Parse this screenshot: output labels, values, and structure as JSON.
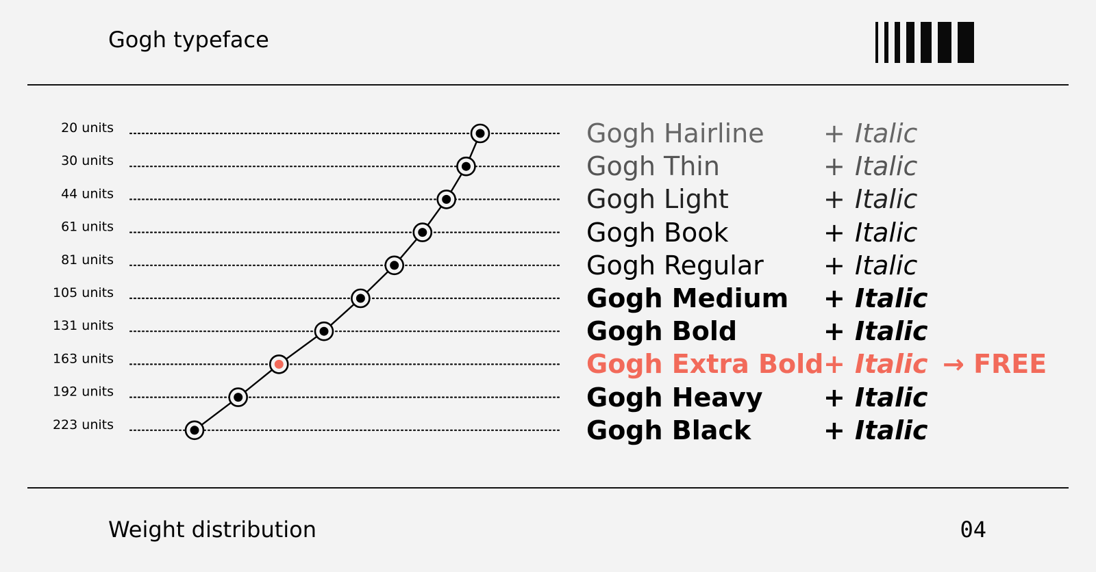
{
  "header": {
    "title": "Gogh typeface"
  },
  "footer": {
    "title": "Weight distribution",
    "page_number": "04"
  },
  "colors": {
    "accent": "#f26a5a",
    "ink": "#000000",
    "background": "#f3f3f3"
  },
  "chart_data": {
    "type": "line",
    "categories": [
      "20 units",
      "30 units",
      "44 units",
      "61 units",
      "81 units",
      "105 units",
      "131 units",
      "163 units",
      "192 units",
      "223 units"
    ],
    "values": [
      20,
      30,
      44,
      61,
      81,
      105,
      131,
      163,
      192,
      223
    ],
    "highlight_index": 7,
    "xlim": [
      20,
      223
    ]
  },
  "styles": [
    {
      "name": "Gogh Hairline",
      "plus": "+",
      "italic": "Italic",
      "weight": 100
    },
    {
      "name": "Gogh Thin",
      "plus": "+",
      "italic": "Italic",
      "weight": 200
    },
    {
      "name": "Gogh Light",
      "plus": "+",
      "italic": "Italic",
      "weight": 300
    },
    {
      "name": "Gogh Book",
      "plus": "+",
      "italic": "Italic",
      "weight": 350
    },
    {
      "name": "Gogh Regular",
      "plus": "+",
      "italic": "Italic",
      "weight": 400
    },
    {
      "name": "Gogh Medium",
      "plus": "+",
      "italic": "Italic",
      "weight": 500
    },
    {
      "name": "Gogh Bold",
      "plus": "+",
      "italic": "Italic",
      "weight": 700
    },
    {
      "name": "Gogh Extra Bold",
      "plus": "+",
      "italic": "Italic",
      "weight": 800,
      "free_label": "→ FREE"
    },
    {
      "name": "Gogh Heavy",
      "plus": "+",
      "italic": "Italic",
      "weight": 900
    },
    {
      "name": "Gogh Black",
      "plus": "+",
      "italic": "Italic",
      "weight": 950
    }
  ]
}
